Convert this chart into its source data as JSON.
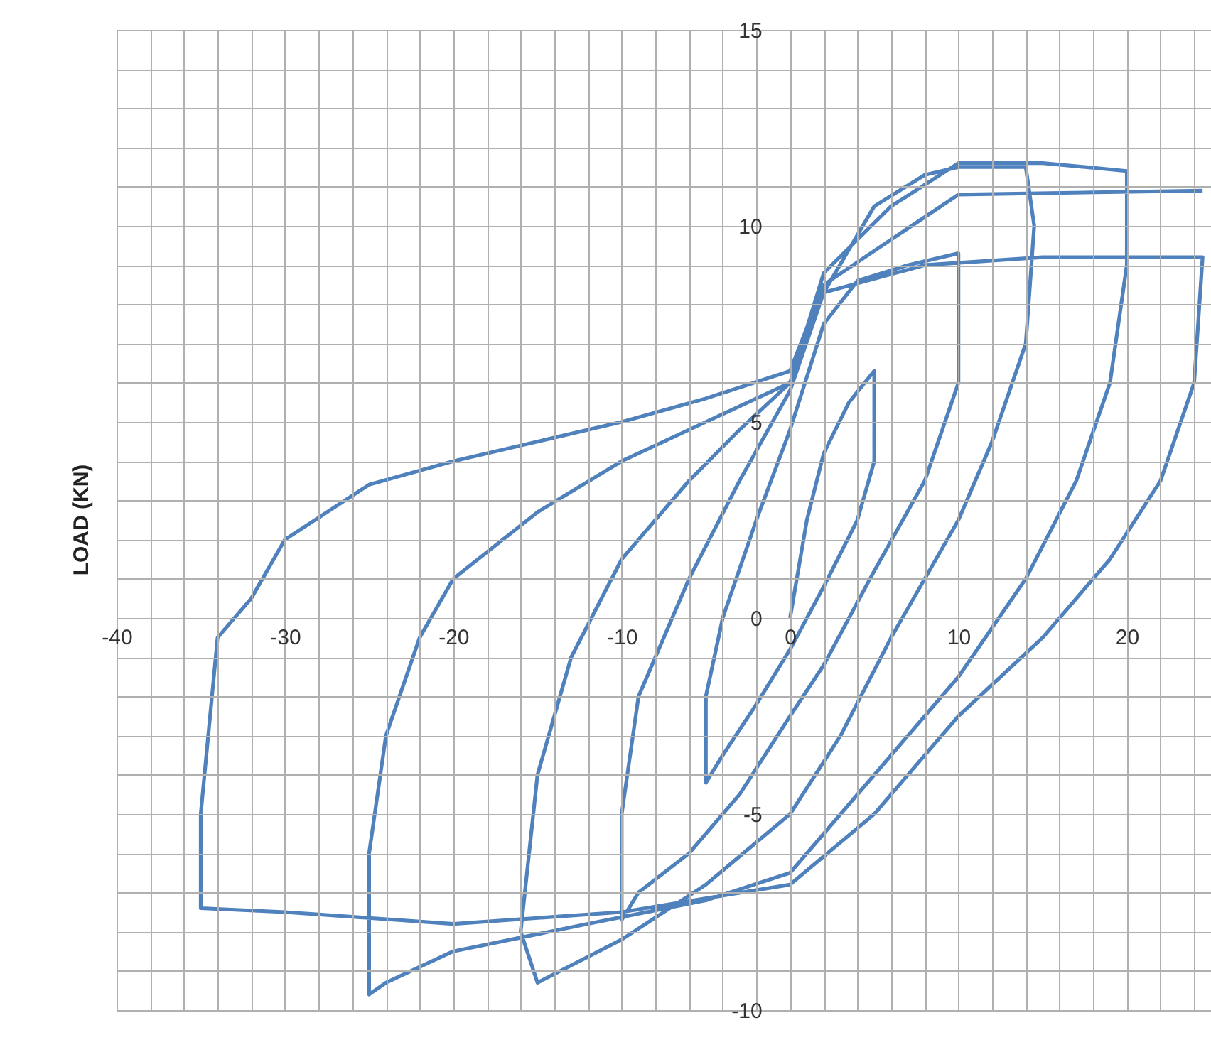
{
  "chart_data": {
    "type": "line",
    "ylabel": "LOAD (KN)",
    "x": [
      0,
      1,
      2,
      3.5,
      5,
      5,
      4,
      2,
      0,
      -2,
      -4,
      -5,
      -5,
      -4,
      -2,
      0,
      2,
      4,
      7,
      10,
      10,
      8,
      5,
      2,
      0,
      -3,
      -6,
      -9,
      -10,
      -10,
      -9,
      -6,
      -3,
      0,
      2,
      5,
      8,
      10,
      14,
      14.5,
      14,
      12,
      10,
      6,
      3,
      0,
      -5,
      -10,
      -15,
      -16,
      -15,
      -13,
      -10,
      -6,
      -3,
      0,
      2,
      6,
      10,
      15,
      20,
      20,
      19,
      17,
      14,
      10,
      6,
      3,
      0,
      -5,
      -12,
      -20,
      -24,
      -25,
      -25,
      -24,
      -22,
      -20,
      -15,
      -10,
      -5,
      0,
      2,
      8,
      15,
      24.5,
      24,
      22,
      19,
      15,
      10,
      5,
      0,
      -10,
      -20,
      -30,
      -35,
      -35,
      -34,
      -32,
      -30,
      -25,
      -20,
      -10,
      -5,
      0,
      2,
      10,
      24.5
    ],
    "series": [
      {
        "color": "#4f81bd",
        "values": [
          0,
          2.5,
          4.2,
          5.5,
          6.3,
          4,
          2.5,
          0.8,
          -0.8,
          -2.2,
          -3.5,
          -4.2,
          -2,
          0,
          2.5,
          4.8,
          7.5,
          8.6,
          9,
          9.3,
          6,
          3.5,
          1.2,
          -1.2,
          -2.5,
          -4.5,
          -6,
          -7,
          -7.7,
          -5,
          -2,
          1,
          3.5,
          5.8,
          8.3,
          10.5,
          11.3,
          11.5,
          11.5,
          10,
          7,
          4.5,
          2.5,
          -0.5,
          -3,
          -5,
          -6.8,
          -8.2,
          -9.3,
          -8,
          -4,
          -1,
          1.5,
          3.5,
          4.8,
          6,
          8.8,
          10.5,
          11.6,
          11.6,
          11.4,
          9,
          6,
          3.5,
          1,
          -1.5,
          -3.5,
          -5,
          -6.5,
          -7.2,
          -7.8,
          -8.5,
          -9.3,
          -9.6,
          -6,
          -3,
          -0.5,
          1,
          2.7,
          4,
          5,
          6,
          8.3,
          9,
          9.2,
          9.2,
          6,
          3.5,
          1.5,
          -0.5,
          -2.5,
          -5,
          -6.8,
          -7.5,
          -7.8,
          -7.5,
          -7.4,
          -5,
          -0.5,
          0.5,
          2,
          3.4,
          4,
          5,
          5.6,
          6.3,
          8.5,
          10.8,
          10.9
        ]
      }
    ],
    "xlim": [
      -40,
      25
    ],
    "ylim": [
      -10,
      15
    ],
    "xticks": [
      -40,
      {
        "value": -38,
        "label": null
      },
      {
        "value": -36,
        "label": null
      },
      {
        "value": -34,
        "label": null
      },
      {
        "value": -32,
        "label": null
      },
      -30,
      {
        "value": -28,
        "label": null
      },
      {
        "value": -26,
        "label": null
      },
      {
        "value": -24,
        "label": null
      },
      {
        "value": -22,
        "label": null
      },
      -20,
      {
        "value": -18,
        "label": null
      },
      {
        "value": -16,
        "label": null
      },
      {
        "value": -14,
        "label": null
      },
      {
        "value": -12,
        "label": null
      },
      -10,
      {
        "value": -8,
        "label": null
      },
      {
        "value": -6,
        "label": null
      },
      {
        "value": -4,
        "label": null
      },
      {
        "value": -2,
        "label": null
      },
      0,
      {
        "value": 2,
        "label": null
      },
      {
        "value": 4,
        "label": null
      },
      {
        "value": 6,
        "label": null
      },
      {
        "value": 8,
        "label": null
      },
      10,
      {
        "value": 12,
        "label": null
      },
      {
        "value": 14,
        "label": null
      },
      {
        "value": 16,
        "label": null
      },
      {
        "value": 18,
        "label": null
      },
      20,
      {
        "value": 22,
        "label": null
      },
      {
        "value": 24,
        "label": null
      }
    ],
    "yticks": [
      -10,
      {
        "value": -9,
        "label": null
      },
      {
        "value": -8,
        "label": null
      },
      {
        "value": -7,
        "label": null
      },
      {
        "value": -6,
        "label": null
      },
      -5,
      {
        "value": -4,
        "label": null
      },
      {
        "value": -3,
        "label": null
      },
      {
        "value": -2,
        "label": null
      },
      {
        "value": -1,
        "label": null
      },
      0,
      {
        "value": 1,
        "label": null
      },
      {
        "value": 2,
        "label": null
      },
      {
        "value": 3,
        "label": null
      },
      {
        "value": 4,
        "label": null
      },
      5,
      {
        "value": 6,
        "label": null
      },
      {
        "value": 7,
        "label": null
      },
      {
        "value": 8,
        "label": null
      },
      {
        "value": 9,
        "label": null
      },
      10,
      {
        "value": 11,
        "label": null
      },
      {
        "value": 12,
        "label": null
      },
      {
        "value": 13,
        "label": null
      },
      {
        "value": 14,
        "label": null
      },
      15
    ],
    "grid": true,
    "line_style": "solid"
  }
}
